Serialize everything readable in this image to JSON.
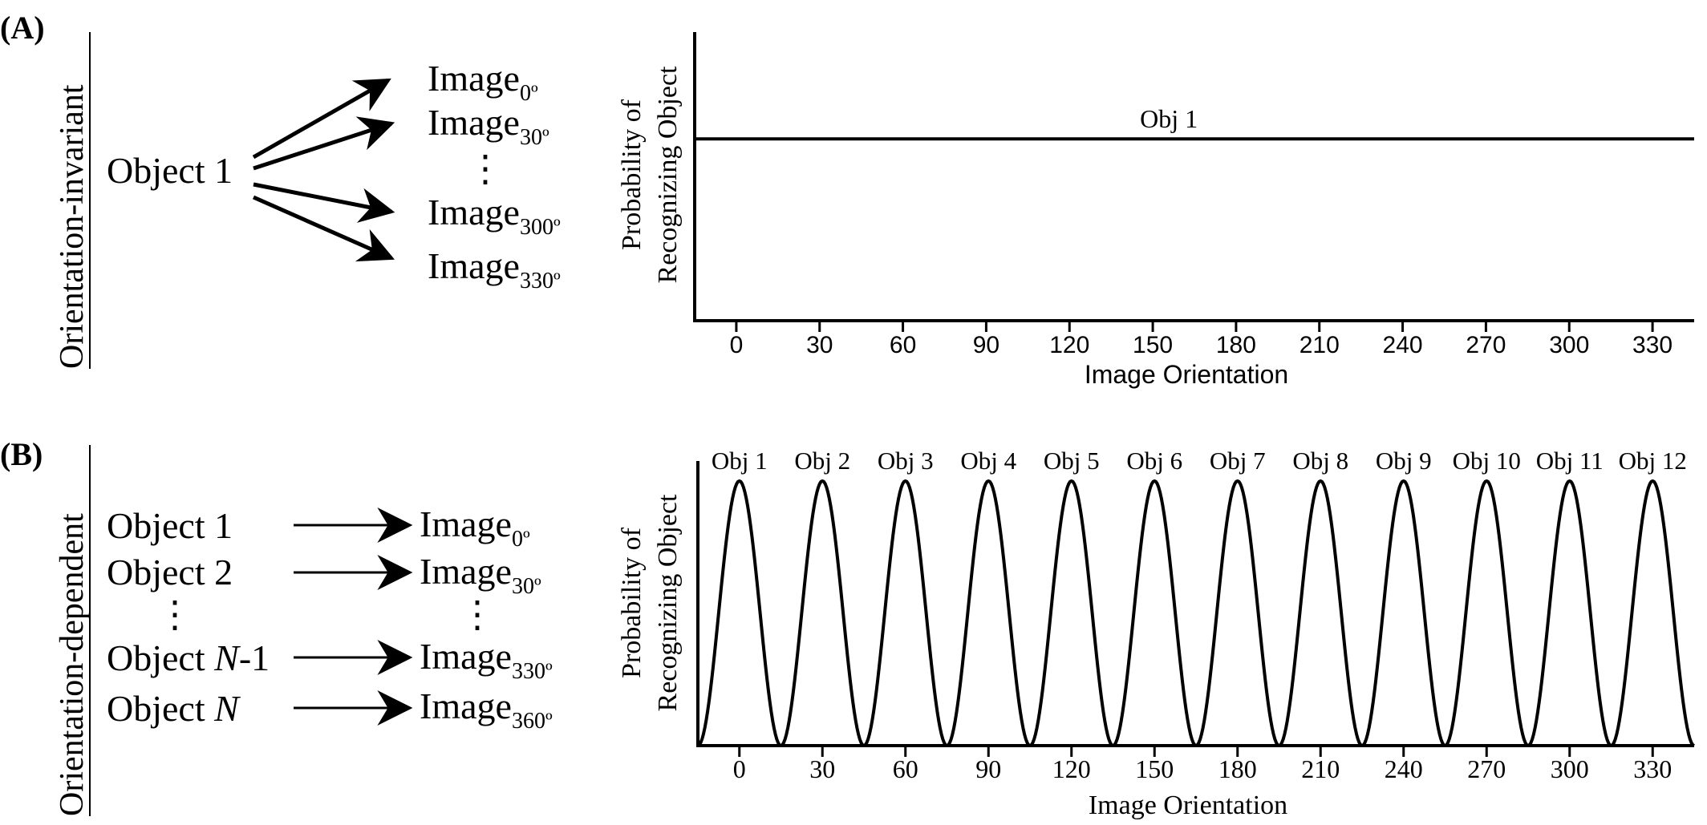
{
  "panels": [
    {
      "id": "A",
      "label": "(A)",
      "side_title": "Orientation-invariant",
      "diagram": {
        "source": "Object 1",
        "targets": [
          {
            "base": "Image",
            "sub": "0º"
          },
          {
            "base": "Image",
            "sub": "30º"
          },
          {
            "base": "Image",
            "sub": "300º"
          },
          {
            "base": "Image",
            "sub": "330º"
          }
        ],
        "ellipsis": "⋮"
      },
      "chart_data": {
        "type": "line",
        "x_ticks": [
          0,
          30,
          60,
          90,
          120,
          150,
          180,
          210,
          240,
          270,
          300,
          330
        ],
        "xlim": [
          -15,
          345
        ],
        "xlabel": "Image Orientation",
        "ylabel_line1": "Probability of",
        "ylabel_line2": "Recognizing Object",
        "ylim": [
          0,
          1
        ],
        "series": [
          {
            "name": "Obj 1",
            "x": [
              -15,
              345
            ],
            "y": [
              0.63,
              0.63
            ]
          }
        ],
        "grid": false,
        "tick_font": "sans"
      }
    },
    {
      "id": "B",
      "label": "(B)",
      "side_title": "Orientation-dependent",
      "diagram": {
        "rows": [
          {
            "object": {
              "base": "Object 1"
            },
            "image": {
              "base": "Image",
              "sub": "0º"
            }
          },
          {
            "object": {
              "base": "Object 2"
            },
            "image": {
              "base": "Image",
              "sub": "30º"
            }
          },
          {
            "object": {
              "base": "Object ",
              "italic": "N",
              "suffix": "-1"
            },
            "image": {
              "base": "Image",
              "sub": "330º"
            }
          },
          {
            "object": {
              "base": "Object ",
              "italic": "N",
              "suffix": ""
            },
            "image": {
              "base": "Image",
              "sub": "360º"
            }
          }
        ],
        "ellipsis": "⋮"
      },
      "chart_data": {
        "type": "line",
        "x_ticks": [
          0,
          30,
          60,
          90,
          120,
          150,
          180,
          210,
          240,
          270,
          300,
          330
        ],
        "xlim": [
          -15,
          345
        ],
        "xlabel": "Image Orientation",
        "ylabel_line1": "Probability of",
        "ylabel_line2": "Recognizing Object",
        "ylim": [
          0,
          1
        ],
        "series": [
          {
            "name": "Obj 1",
            "center": 0,
            "peak": 0.93,
            "width": 15
          },
          {
            "name": "Obj 2",
            "center": 30,
            "peak": 0.93,
            "width": 15
          },
          {
            "name": "Obj 3",
            "center": 60,
            "peak": 0.93,
            "width": 15
          },
          {
            "name": "Obj 4",
            "center": 90,
            "peak": 0.93,
            "width": 15
          },
          {
            "name": "Obj 5",
            "center": 120,
            "peak": 0.93,
            "width": 15
          },
          {
            "name": "Obj 6",
            "center": 150,
            "peak": 0.93,
            "width": 15
          },
          {
            "name": "Obj 7",
            "center": 180,
            "peak": 0.93,
            "width": 15
          },
          {
            "name": "Obj 8",
            "center": 210,
            "peak": 0.93,
            "width": 15
          },
          {
            "name": "Obj 9",
            "center": 240,
            "peak": 0.93,
            "width": 15
          },
          {
            "name": "Obj 10",
            "center": 270,
            "peak": 0.93,
            "width": 15
          },
          {
            "name": "Obj 11",
            "center": 300,
            "peak": 0.93,
            "width": 15
          },
          {
            "name": "Obj 12",
            "center": 330,
            "peak": 0.93,
            "width": 15
          }
        ],
        "grid": false,
        "tick_font": "serif"
      }
    }
  ]
}
